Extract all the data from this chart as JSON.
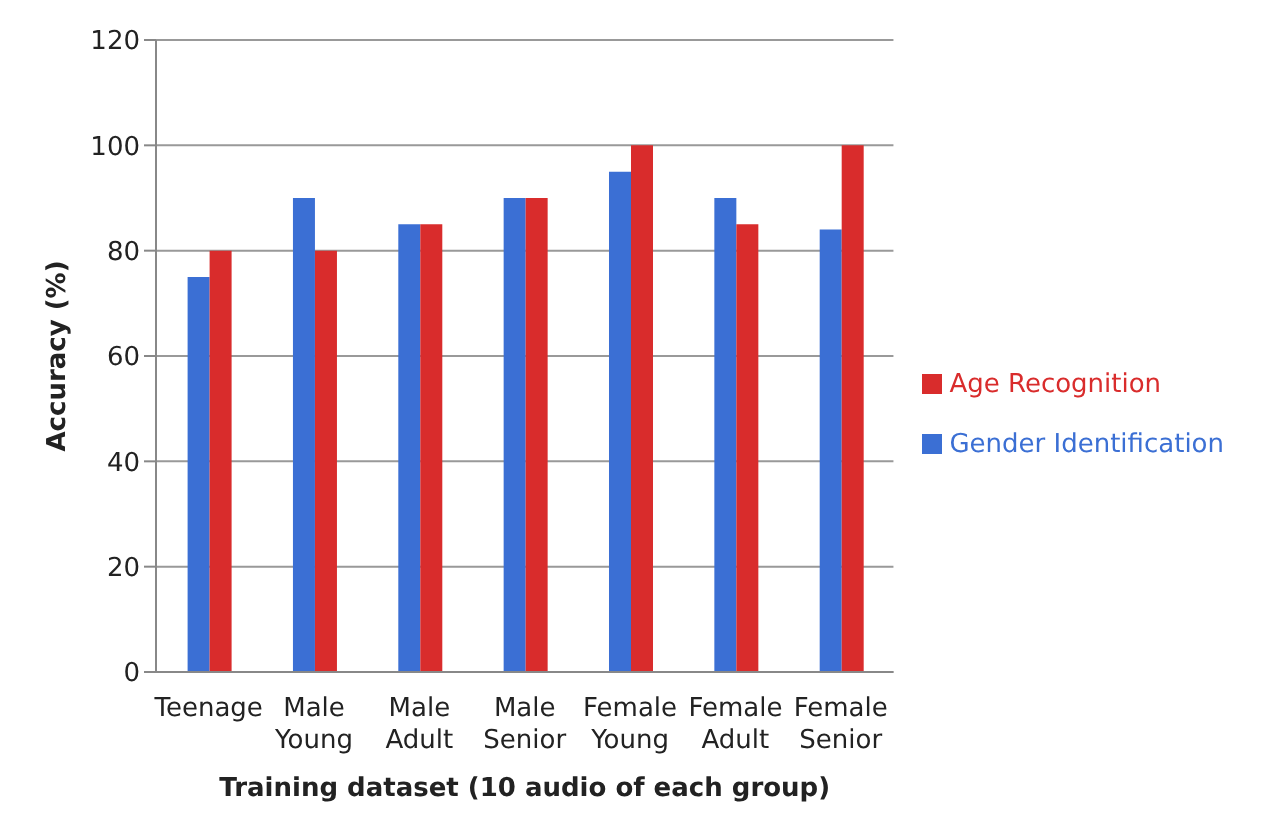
{
  "chart_data": {
    "type": "bar",
    "xlabel": "Training dataset (10 audio of each group)",
    "ylabel": "Accuracy  (%)",
    "categories": [
      "Teenage",
      "Male Young",
      "Male Adult",
      "Male Senior",
      "Female Young",
      "Female Adult",
      "Female Senior"
    ],
    "series": [
      {
        "name": "Gender Identification",
        "color": "#3b6fd4",
        "values": [
          75,
          90,
          85,
          90,
          95,
          90,
          84
        ]
      },
      {
        "name": "Age Recognition",
        "color": "#d92c2c",
        "values": [
          80,
          80,
          85,
          90,
          100,
          85,
          100
        ]
      }
    ],
    "ylim": [
      0,
      120
    ],
    "yticks": [
      0,
      20,
      40,
      60,
      80,
      100,
      120
    ],
    "grid": "y",
    "legend": "right"
  }
}
